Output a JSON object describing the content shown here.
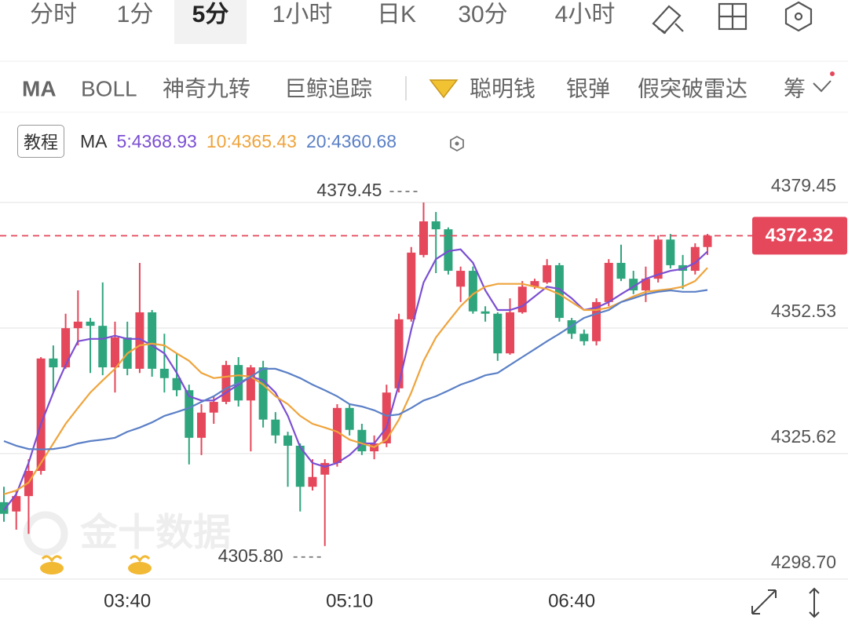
{
  "tabs": {
    "items": [
      "分时",
      "1分",
      "5分",
      "1小时",
      "日K",
      "30分",
      "4小时"
    ],
    "selected": 2
  },
  "indicators": {
    "items": [
      "MA",
      "BOLL",
      "神奇九转",
      "巨鲸追踪"
    ],
    "tools": [
      "聪明钱",
      "银弹",
      "假突破雷达",
      "筹"
    ]
  },
  "legend": {
    "button": "教程",
    "prefix": "MA"
  },
  "watermark": "金十数据",
  "chart_data": {
    "type": "candlestick",
    "up_color": "#e5475b",
    "down_color": "#2fa57e",
    "categories": [
      null,
      null,
      null,
      null,
      null,
      null,
      null,
      null,
      null,
      null,
      "03:40",
      null,
      null,
      null,
      null,
      null,
      null,
      null,
      null,
      null,
      null,
      null,
      null,
      null,
      null,
      null,
      null,
      null,
      "05:10",
      null,
      null,
      null,
      null,
      null,
      null,
      null,
      null,
      null,
      null,
      null,
      null,
      null,
      null,
      null,
      null,
      null,
      "06:40",
      null,
      null,
      null,
      null,
      null,
      null,
      null,
      null,
      null,
      null,
      null
    ],
    "open": [
      4315.2,
      4313.2,
      4316.5,
      4321.9,
      4346.0,
      4344.1,
      4352.5,
      4353.9,
      4353.0,
      4344.1,
      4350.5,
      4343.8,
      4355.9,
      4343.8,
      4341.8,
      4339.2,
      4329.0,
      4334.4,
      4336.7,
      4344.6,
      4337.0,
      4344.1,
      4332.9,
      4329.5,
      4327.3,
      4318.5,
      4321.1,
      4323.6,
      4335.4,
      4330.7,
      4326.1,
      4327.8,
      4339.6,
      4354.4,
      4368.2,
      4375.4,
      4373.7,
      4361.4,
      4364.8,
      4356.1,
      4355.6,
      4347.1,
      4355.9,
      4361.4,
      4362.3,
      4366.0,
      4354.2,
      4351.3,
      4349.7,
      4358.1,
      4366.5,
      4363.1,
      4360.6,
      4363.1,
      4371.5,
      4366.0,
      4364.8,
      4369.9
    ],
    "high": [
      4318.5,
      4317.7,
      4324.4,
      4346.3,
      4348.8,
      4355.6,
      4360.6,
      4354.7,
      4362.3,
      4353.9,
      4353.9,
      4366.5,
      4356.4,
      4351.3,
      4347.1,
      4340.4,
      4336.2,
      4337.9,
      4345.5,
      4346.3,
      4344.6,
      4345.5,
      4334.5,
      4330.3,
      4327.8,
      4324.4,
      4324.4,
      4336.2,
      4336.2,
      4332.0,
      4329.5,
      4340.4,
      4355.6,
      4369.9,
      4379.45,
      4377.4,
      4374.1,
      4365.7,
      4365.7,
      4357.2,
      4355.9,
      4358.9,
      4362.6,
      4363.1,
      4367.3,
      4366.5,
      4354.7,
      4352.2,
      4358.9,
      4367.3,
      4370.4,
      4364.8,
      4365.7,
      4372.4,
      4372.7,
      4368.2,
      4370.7,
      4372.7
    ],
    "low": [
      4311.0,
      4309.3,
      4308.4,
      4321.1,
      4338.7,
      4343.8,
      4348.8,
      4342.9,
      4342.4,
      4338.7,
      4342.4,
      4342.9,
      4342.1,
      4338.7,
      4337.9,
      4323.3,
      4325.3,
      4332.0,
      4336.2,
      4335.7,
      4326.1,
      4331.2,
      4327.8,
      4318.5,
      4313.2,
      4317.7,
      4305.8,
      4322.8,
      4329.5,
      4325.3,
      4324.4,
      4327.0,
      4338.7,
      4353.9,
      4367.7,
      4364.3,
      4364.0,
      4358.1,
      4355.6,
      4353.9,
      4345.5,
      4346.8,
      4355.6,
      4360.9,
      4362.0,
      4353.9,
      4350.2,
      4348.8,
      4348.8,
      4357.2,
      4362.6,
      4359.8,
      4358.1,
      4362.3,
      4365.3,
      4360.9,
      4364.0,
      4368.2
    ],
    "close": [
      4312.7,
      4316.5,
      4321.9,
      4346.0,
      4344.1,
      4352.5,
      4353.9,
      4353.0,
      4344.1,
      4350.5,
      4343.8,
      4355.9,
      4343.8,
      4341.8,
      4339.2,
      4329.0,
      4334.4,
      4336.7,
      4344.6,
      4337.0,
      4344.1,
      4332.9,
      4329.5,
      4327.3,
      4318.5,
      4320.6,
      4323.6,
      4335.4,
      4330.7,
      4326.1,
      4327.8,
      4338.7,
      4354.4,
      4368.7,
      4375.4,
      4373.7,
      4364.8,
      4364.8,
      4356.1,
      4355.6,
      4347.1,
      4355.9,
      4361.4,
      4362.6,
      4366.0,
      4354.7,
      4351.3,
      4349.7,
      4358.1,
      4366.5,
      4363.1,
      4360.6,
      4363.1,
      4371.5,
      4366.0,
      4364.8,
      4369.9,
      4372.32
    ],
    "series": [
      {
        "name": "5",
        "color": "#7b4fd2",
        "values": [
          4313.5,
          4316.9,
          4323.6,
          4332.0,
          4338.7,
          4344.6,
          4349.7,
          4350.2,
          4350.2,
          4350.9,
          4350.2,
          4350.2,
          4348.8,
          4347.1,
          4342.9,
          4337.9,
          4337.0,
          4337.0,
          4338.7,
          4340.4,
          4342.1,
          4341.3,
          4338.7,
          4333.7,
          4327.0,
          4323.6,
          4322.8,
          4323.6,
          4325.3,
          4327.8,
          4327.8,
          4331.2,
          4340.4,
          4352.2,
          4362.3,
          4367.3,
          4369.0,
          4369.4,
          4366.5,
          4360.6,
          4356.4,
          4356.4,
          4357.2,
          4359.3,
          4361.4,
          4360.9,
          4358.9,
          4356.4,
          4356.9,
          4358.1,
          4359.8,
          4361.4,
          4363.1,
          4364.0,
          4364.8,
          4365.2,
          4366.5,
          4368.93
        ]
      },
      {
        "name": "10",
        "color": "#efa43c",
        "values": [
          4316.9,
          4317.7,
          4319.4,
          4323.6,
          4327.8,
          4332.0,
          4335.4,
          4338.7,
          4341.3,
          4343.8,
          4347.1,
          4348.8,
          4349.2,
          4348.8,
          4347.1,
          4345.5,
          4342.9,
          4341.8,
          4342.1,
          4342.4,
          4342.1,
          4340.4,
          4337.9,
          4336.2,
          4333.7,
          4332.0,
          4331.2,
          4330.3,
          4328.6,
          4327.8,
          4327.0,
          4328.6,
          4332.9,
          4338.7,
          4345.5,
          4350.5,
          4353.9,
          4357.2,
          4359.8,
          4361.4,
          4362.0,
          4362.0,
          4362.0,
          4361.4,
          4360.9,
          4359.8,
          4358.1,
          4356.4,
          4356.4,
          4356.9,
          4358.1,
          4359.3,
          4360.3,
          4360.6,
          4360.9,
          4361.4,
          4362.6,
          4365.43
        ]
      },
      {
        "name": "20",
        "color": "#5b80c6",
        "values": [
          4328.3,
          4327.3,
          4326.6,
          4326.5,
          4326.6,
          4327.0,
          4327.8,
          4328.3,
          4328.6,
          4329.0,
          4330.3,
          4331.2,
          4332.3,
          4333.7,
          4334.5,
          4335.4,
          4336.7,
          4337.9,
          4339.6,
          4340.7,
          4342.1,
          4343.8,
          4343.8,
          4342.9,
          4341.8,
          4340.4,
          4339.2,
          4337.9,
          4336.2,
          4335.7,
          4334.9,
          4333.7,
          4334.0,
          4335.4,
          4337.0,
          4337.9,
          4339.1,
          4340.4,
          4341.3,
          4342.4,
          4342.9,
          4344.6,
          4346.3,
          4348.0,
          4349.7,
          4351.3,
          4353.0,
          4354.7,
          4355.6,
          4356.4,
          4358.1,
          4358.9,
          4359.8,
          4360.3,
          4360.6,
          4360.3,
          4360.3,
          4360.68
        ]
      }
    ],
    "ylim": [
      4298.35,
      4399.3
    ],
    "yticks": [
      4379.45,
      4352.53,
      4325.62,
      {
        "value": 4298.7,
        "label": "4298.70"
      }
    ],
    "last_price": 4372.32,
    "max_marker": 4379.45,
    "min_marker": {
      "value": 4305.8,
      "label": "4305.80"
    },
    "grid": true
  }
}
